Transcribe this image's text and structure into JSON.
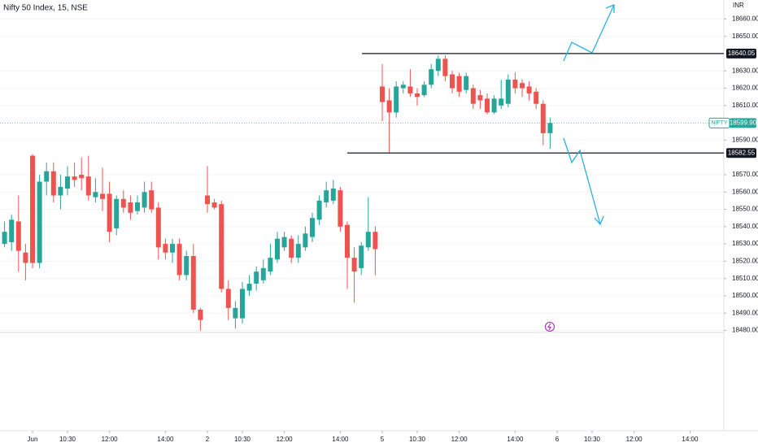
{
  "chart_data": {
    "type": "candlestick",
    "title": "Nifty 50 Index, 15, NSE",
    "currency": "INR",
    "categories": [
      null,
      null,
      null,
      null,
      "Jun",
      null,
      null,
      null,
      null,
      "10:30",
      null,
      null,
      null,
      null,
      null,
      "12:00",
      null,
      null,
      null,
      null,
      null,
      null,
      null,
      "14:00",
      null,
      null,
      null,
      null,
      null,
      "2",
      null,
      null,
      null,
      null,
      "10:30",
      null,
      null,
      null,
      null,
      null,
      "12:00",
      null,
      null,
      null,
      null,
      null,
      null,
      null,
      "14:00",
      null,
      null,
      null,
      null,
      null,
      "5",
      null,
      null,
      null,
      null,
      "10:30",
      null,
      null,
      null,
      null,
      null,
      "12:00",
      null,
      null,
      null,
      null,
      null,
      null,
      null,
      "14:00",
      null,
      null,
      null,
      null,
      null,
      "6",
      null,
      null,
      null,
      null,
      "10:30",
      null,
      null,
      null,
      null,
      null,
      "12:00",
      null,
      null,
      null,
      null,
      null,
      null,
      null,
      "14:00",
      null,
      null,
      null,
      null,
      null
    ],
    "open": [
      18530,
      18531,
      18543,
      18525,
      18581,
      18519,
      18566,
      18572,
      18558,
      18562,
      18569,
      18570,
      18569,
      18557,
      18559,
      18559,
      18539,
      18556,
      18554,
      18549,
      18551,
      18561,
      18551,
      18530,
      18525,
      18530,
      18512,
      18523,
      18492,
      18558,
      18554,
      18553,
      18504,
      18487,
      18487,
      18503,
      18507,
      18509,
      18514,
      18521,
      18528,
      18533,
      18522,
      18528,
      18534,
      18544,
      18554,
      18555,
      18561,
      18541,
      18522,
      18516,
      18528,
      18537,
      18621,
      18613,
      18606,
      18620,
      18621,
      18617,
      18616,
      18622,
      18630,
      18637,
      18628,
      18627,
      18619,
      18620,
      18616,
      18614,
      18606,
      18610,
      18611,
      18625,
      18623,
      18621,
      18618,
      18611,
      18594,
      null,
      null,
      null,
      null,
      null,
      null,
      null,
      null,
      null,
      null,
      null,
      null,
      null,
      null,
      null,
      null,
      null,
      null,
      null,
      null,
      null,
      null,
      null,
      null,
      null
    ],
    "high": [
      18543,
      18547,
      18558,
      18530,
      18582,
      18570,
      18577,
      18577,
      18570,
      18575,
      18577,
      18580,
      18581,
      18568,
      18574,
      18566,
      18558,
      18561,
      18558,
      18558,
      18566,
      18566,
      18554,
      18533,
      18533,
      18533,
      18526,
      18530,
      18493,
      18575,
      18556,
      18555,
      18509,
      18497,
      18508,
      18512,
      18517,
      18521,
      18530,
      18537,
      18537,
      18535,
      18535,
      18540,
      18548,
      18558,
      18566,
      18567,
      18563,
      18543,
      18528,
      18531,
      18557,
      18540,
      18634,
      18620,
      18624,
      18624,
      18631,
      18620,
      18624,
      18634,
      18639,
      18639,
      18630,
      18629,
      18629,
      18622,
      18619,
      18617,
      18616,
      18625,
      18628,
      18629,
      18625,
      18624,
      18620,
      18613,
      18603,
      null,
      null,
      null,
      null,
      null,
      null,
      null,
      null,
      null,
      null,
      null,
      null,
      null,
      null,
      null,
      null,
      null,
      null,
      null,
      null,
      null,
      null,
      null,
      null,
      null
    ],
    "low": [
      18528,
      18526,
      18514,
      18509,
      18516,
      18516,
      18558,
      18554,
      18550,
      18558,
      18563,
      18561,
      18555,
      18554,
      18549,
      18531,
      18535,
      18548,
      18544,
      18547,
      18548,
      18548,
      18521,
      18521,
      18519,
      18509,
      18509,
      18490,
      18480,
      18548,
      18550,
      18502,
      18486,
      18481,
      18484,
      18500,
      18503,
      18507,
      18512,
      18519,
      18526,
      18519,
      18519,
      18526,
      18531,
      18541,
      18551,
      18553,
      18537,
      18504,
      18496,
      18512,
      18526,
      18512,
      18601,
      18583,
      18603,
      18617,
      18615,
      18610,
      18615,
      18620,
      18627,
      18624,
      18617,
      18615,
      18617,
      18608,
      18608,
      18605,
      18605,
      18608,
      18609,
      18617,
      18615,
      18613,
      18608,
      18587,
      18585,
      null,
      null,
      null,
      null,
      null,
      null,
      null,
      null,
      null,
      null,
      null,
      null,
      null,
      null,
      null,
      null,
      null,
      null,
      null,
      null,
      null,
      null,
      null,
      null,
      null
    ],
    "close": [
      18537,
      18544,
      18526,
      18519,
      18519,
      18566,
      18572,
      18558,
      18563,
      18569,
      18567,
      18568,
      18558,
      18560,
      18556,
      18537,
      18556,
      18551,
      18548,
      18554,
      18560,
      18550,
      18528,
      18525,
      18530,
      18512,
      18523,
      18492,
      18486,
      18553,
      18551,
      18504,
      18493,
      18493,
      18504,
      18507,
      18514,
      18516,
      18522,
      18533,
      18534,
      18522,
      18530,
      18536,
      18545,
      18555,
      18561,
      18562,
      18540,
      18522,
      18514,
      18529,
      18537,
      18527,
      18612,
      18606,
      18621,
      18622,
      18617,
      18615,
      18622,
      18631,
      18637,
      18627,
      18620,
      18618,
      18627,
      18611,
      18613,
      18606,
      18614,
      18614,
      18625,
      18620,
      18620,
      18617,
      18611,
      18594,
      18599.9,
      null,
      null,
      null,
      null,
      null,
      null,
      null,
      null,
      null,
      null,
      null,
      null,
      null,
      null,
      null,
      null,
      null,
      null,
      null,
      null,
      null,
      null,
      null,
      null,
      null
    ],
    "up_color": "#26a69a",
    "down_color": "#ef5350",
    "ylim": [
      18422,
      18671
    ],
    "yticks": [
      {
        "value": 18480,
        "label": "18480.00"
      },
      {
        "value": 18490,
        "label": "18490.00"
      },
      {
        "value": 18500,
        "label": "18500.00"
      },
      {
        "value": 18510,
        "label": "18510.00"
      },
      {
        "value": 18520,
        "label": "18520.00"
      },
      {
        "value": 18530,
        "label": "18530.00"
      },
      {
        "value": 18540,
        "label": "18540.00"
      },
      {
        "value": 18550,
        "label": "18550.00"
      },
      {
        "value": 18560,
        "label": "18560.00"
      },
      {
        "value": 18570,
        "label": "18570.00"
      },
      {
        "value": 18590,
        "label": "18590.00"
      },
      {
        "value": 18610,
        "label": "18610.00"
      },
      {
        "value": 18620,
        "label": "18620.00"
      },
      {
        "value": 18630,
        "label": "18630.00"
      },
      {
        "value": 18650,
        "label": "18650.00"
      },
      {
        "value": 18660,
        "label": "18660.00"
      }
    ],
    "levels": [
      18640.05,
      18582.55
    ],
    "last_price_name": "NIFTY",
    "last_price": {
      "value": 18599.9,
      "label": "18599.90"
    },
    "grid": true
  }
}
